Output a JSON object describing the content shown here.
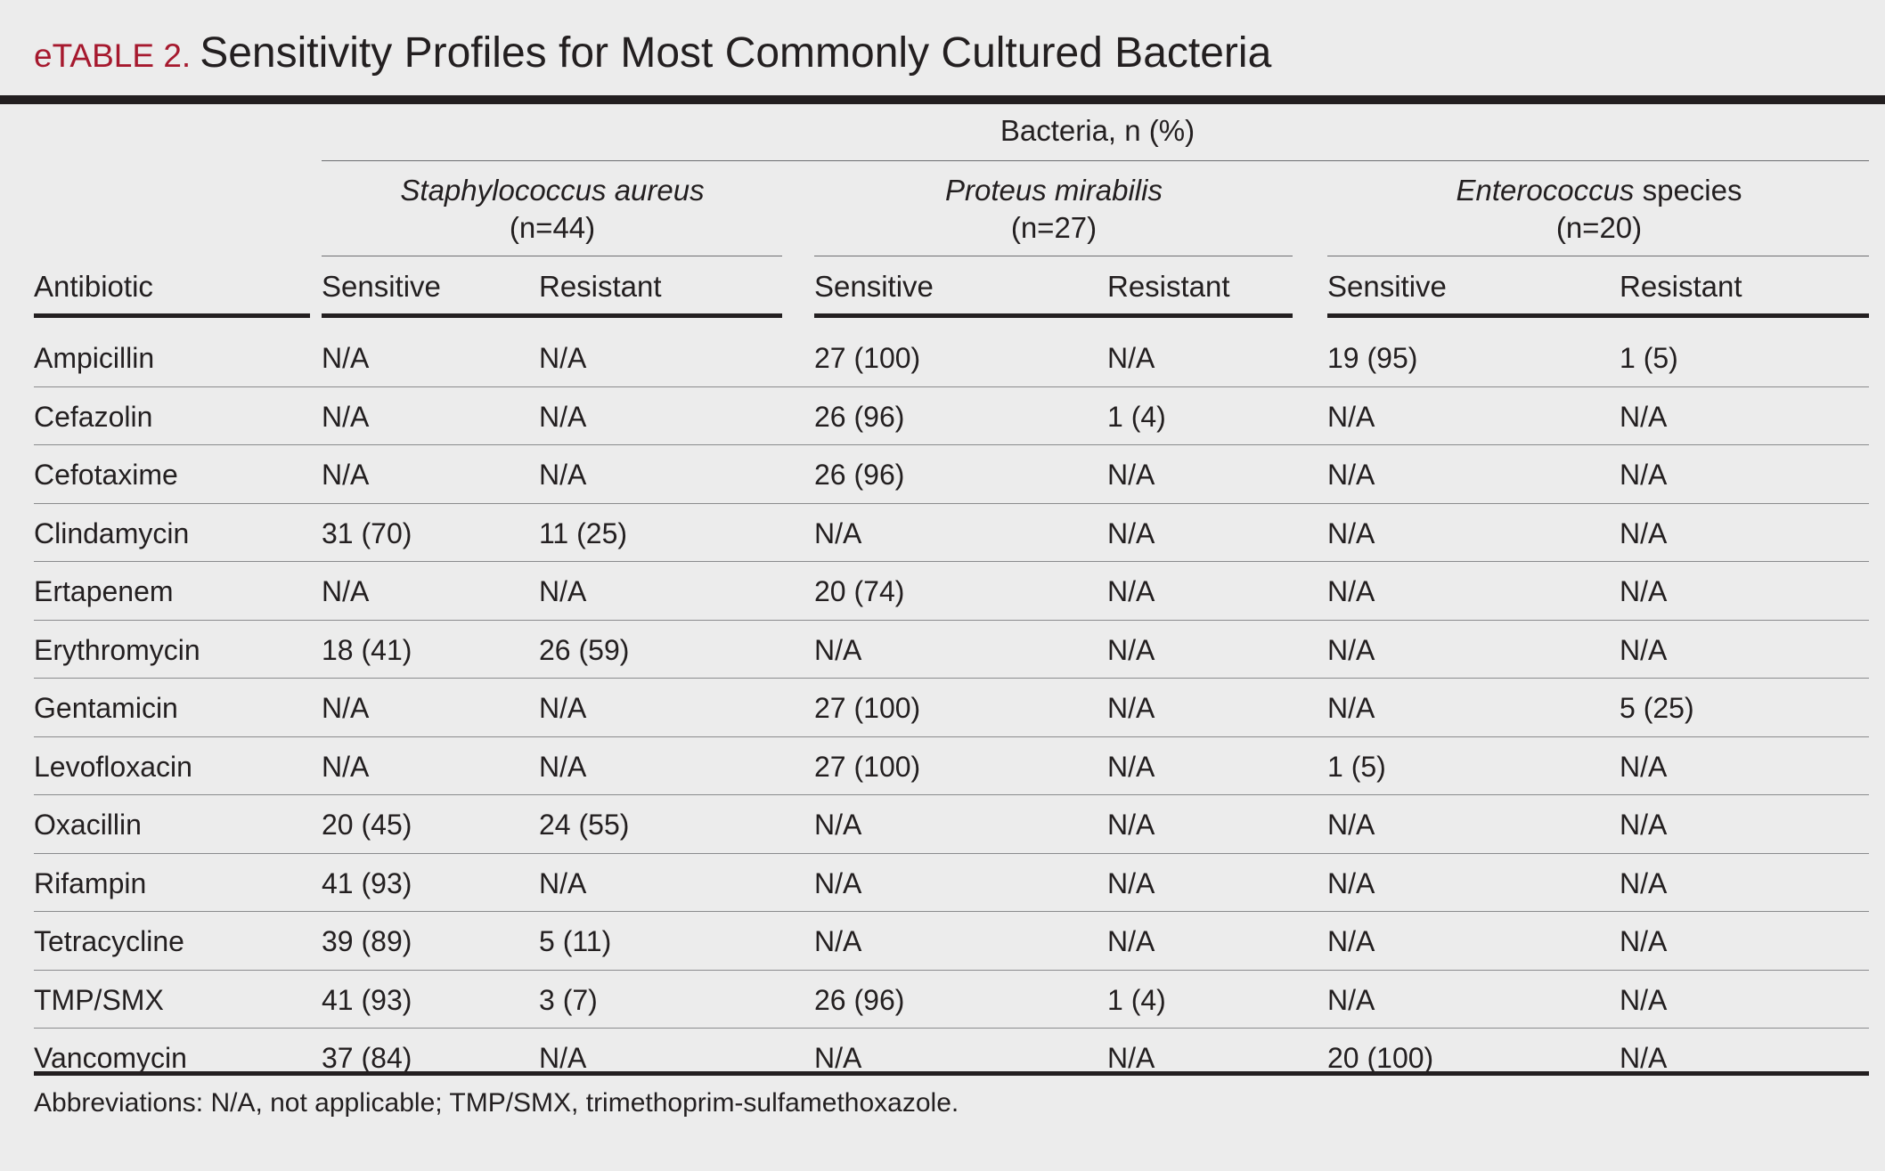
{
  "title": {
    "label": "eTABLE 2.",
    "text": "Sensitivity Profiles for Most Commonly Cultured Bacteria"
  },
  "header": {
    "spanner": "Bacteria, n (%)",
    "antibiotic_col": "Antibiotic",
    "groups": [
      {
        "name": "Staphylococcus aureus",
        "suffix": "",
        "n": "(n=44)",
        "sensitive": "Sensitive",
        "resistant": "Resistant"
      },
      {
        "name": "Proteus mirabilis",
        "suffix": "",
        "n": "(n=27)",
        "sensitive": "Sensitive",
        "resistant": "Resistant"
      },
      {
        "name": "Enterococcus",
        "suffix": " species",
        "n": "(n=20)",
        "sensitive": "Sensitive",
        "resistant": "Resistant"
      }
    ]
  },
  "rows": [
    {
      "antibiotic": "Ampicillin",
      "values": [
        "N/A",
        "N/A",
        "27 (100)",
        "N/A",
        "19 (95)",
        "1 (5)"
      ]
    },
    {
      "antibiotic": "Cefazolin",
      "values": [
        "N/A",
        "N/A",
        "26 (96)",
        "1 (4)",
        "N/A",
        "N/A"
      ]
    },
    {
      "antibiotic": "Cefotaxime",
      "values": [
        "N/A",
        "N/A",
        "26 (96)",
        "N/A",
        "N/A",
        "N/A"
      ]
    },
    {
      "antibiotic": "Clindamycin",
      "values": [
        "31 (70)",
        "11 (25)",
        "N/A",
        "N/A",
        "N/A",
        "N/A"
      ]
    },
    {
      "antibiotic": "Ertapenem",
      "values": [
        "N/A",
        "N/A",
        "20 (74)",
        "N/A",
        "N/A",
        "N/A"
      ]
    },
    {
      "antibiotic": "Erythromycin",
      "values": [
        "18 (41)",
        "26 (59)",
        "N/A",
        "N/A",
        "N/A",
        "N/A"
      ]
    },
    {
      "antibiotic": "Gentamicin",
      "values": [
        "N/A",
        "N/A",
        "27 (100)",
        "N/A",
        "N/A",
        "5 (25)"
      ]
    },
    {
      "antibiotic": "Levofloxacin",
      "values": [
        "N/A",
        "N/A",
        "27 (100)",
        "N/A",
        "1 (5)",
        "N/A"
      ]
    },
    {
      "antibiotic": "Oxacillin",
      "values": [
        "20 (45)",
        "24 (55)",
        "N/A",
        "N/A",
        "N/A",
        "N/A"
      ]
    },
    {
      "antibiotic": "Rifampin",
      "values": [
        "41 (93)",
        "N/A",
        "N/A",
        "N/A",
        "N/A",
        "N/A"
      ]
    },
    {
      "antibiotic": "Tetracycline",
      "values": [
        "39 (89)",
        "5 (11)",
        "N/A",
        "N/A",
        "N/A",
        "N/A"
      ]
    },
    {
      "antibiotic": "TMP/SMX",
      "values": [
        "41 (93)",
        "3 (7)",
        "26 (96)",
        "1 (4)",
        "N/A",
        "N/A"
      ]
    },
    {
      "antibiotic": "Vancomycin",
      "values": [
        "37 (84)",
        "N/A",
        "N/A",
        "N/A",
        "20 (100)",
        "N/A"
      ]
    }
  ],
  "footnote": "Abbreviations: N/A, not applicable; TMP/SMX, trimethoprim-sulfamethoxazole."
}
